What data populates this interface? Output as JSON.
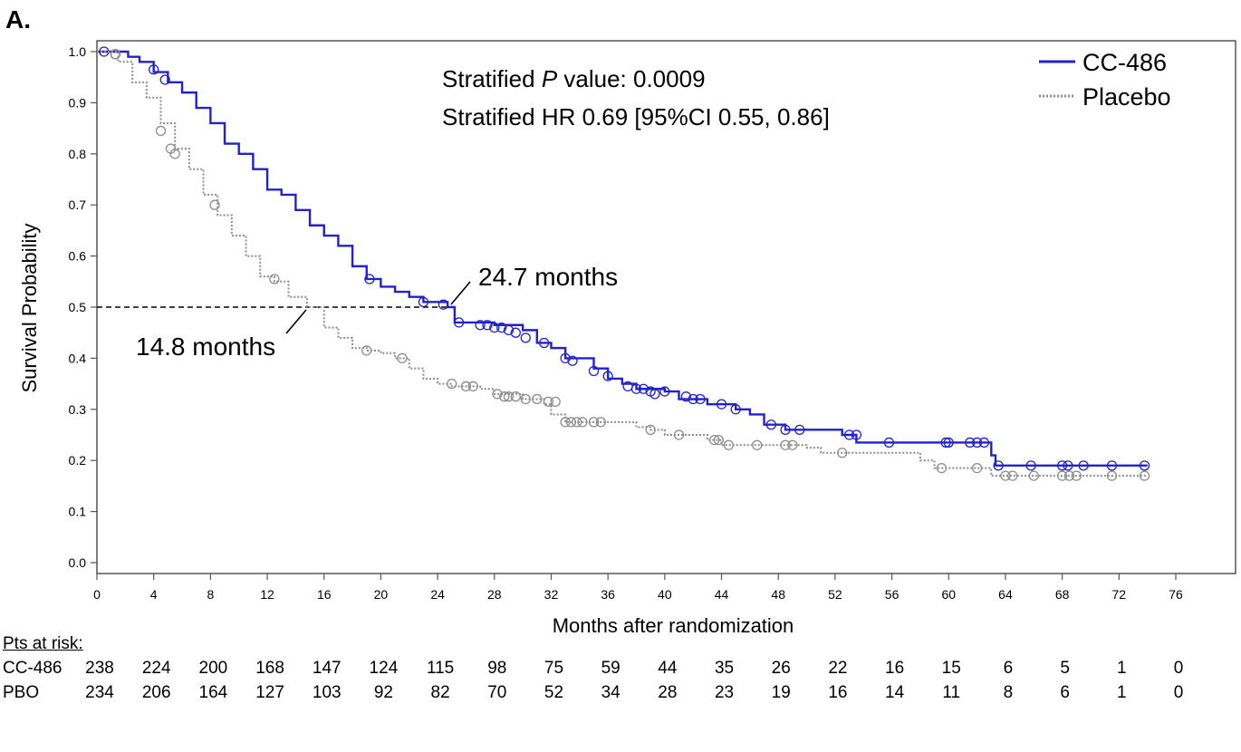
{
  "panel_label": "A.",
  "colors": {
    "cc486": "#2222cc",
    "placebo": "#8c8c8c",
    "axis": "#555555"
  },
  "chart_data": {
    "type": "line",
    "subtype": "kaplan-meier",
    "xlabel": "Months after randomization",
    "ylabel": "Survival Probability",
    "xlim": [
      0,
      76
    ],
    "ylim": [
      0,
      1.0
    ],
    "xticks": [
      0,
      4,
      8,
      12,
      16,
      20,
      24,
      28,
      32,
      36,
      40,
      44,
      48,
      52,
      56,
      60,
      64,
      68,
      72,
      76
    ],
    "xtick_labels": [
      "0",
      "4",
      "8",
      "12",
      "16",
      "20",
      "24",
      "28",
      "32",
      "36",
      "40",
      "44",
      "48",
      "52",
      "56",
      "60",
      "64",
      "68",
      "72",
      "76"
    ],
    "yticks": [
      0,
      0.1,
      0.2,
      0.3,
      0.4,
      0.5,
      0.6,
      0.7,
      0.8,
      0.9,
      1.0
    ],
    "ytick_labels": [
      "0.0",
      "0.1",
      "0.2",
      "0.3",
      "0.4",
      "0.5",
      "0.6",
      "0.7",
      "0.8",
      "0.9",
      "1.0"
    ],
    "legend_position": "top-right",
    "annotations": {
      "p_prefix": "Stratified ",
      "p_italic": "P",
      "p_suffix": " value: 0.0009",
      "hr": "Stratified HR 0.69 [95%CI 0.55, 0.86]",
      "median_cc486": "24.7 months",
      "median_placebo": "14.8 months"
    },
    "reference_line_y": 0.5,
    "series": [
      {
        "name": "CC-486",
        "style": "solid",
        "points": [
          [
            0,
            1.0
          ],
          [
            2.2,
            0.99
          ],
          [
            3,
            0.98
          ],
          [
            4,
            0.96
          ],
          [
            5,
            0.94
          ],
          [
            6,
            0.92
          ],
          [
            7,
            0.89
          ],
          [
            8,
            0.86
          ],
          [
            9,
            0.82
          ],
          [
            10,
            0.8
          ],
          [
            11,
            0.77
          ],
          [
            12,
            0.73
          ],
          [
            13,
            0.72
          ],
          [
            14,
            0.69
          ],
          [
            15,
            0.66
          ],
          [
            16,
            0.64
          ],
          [
            17,
            0.62
          ],
          [
            18,
            0.58
          ],
          [
            19,
            0.555
          ],
          [
            20,
            0.54
          ],
          [
            21,
            0.53
          ],
          [
            22,
            0.52
          ],
          [
            23,
            0.51
          ],
          [
            24.7,
            0.5
          ],
          [
            25.2,
            0.47
          ],
          [
            26.5,
            0.47
          ],
          [
            28,
            0.465
          ],
          [
            30,
            0.455
          ],
          [
            31,
            0.43
          ],
          [
            32,
            0.42
          ],
          [
            33,
            0.4
          ],
          [
            35,
            0.38
          ],
          [
            36,
            0.36
          ],
          [
            37,
            0.35
          ],
          [
            38,
            0.34
          ],
          [
            40,
            0.335
          ],
          [
            41,
            0.32
          ],
          [
            43,
            0.31
          ],
          [
            45,
            0.3
          ],
          [
            46,
            0.29
          ],
          [
            47,
            0.27
          ],
          [
            48.5,
            0.26
          ],
          [
            52.5,
            0.25
          ],
          [
            53.5,
            0.235
          ],
          [
            62.5,
            0.235
          ],
          [
            63,
            0.21
          ],
          [
            63.3,
            0.19
          ],
          [
            74,
            0.19
          ]
        ],
        "censors": [
          [
            0.5,
            1.0
          ],
          [
            1.3,
            0.995
          ],
          [
            4,
            0.965
          ],
          [
            4.8,
            0.945
          ],
          [
            19.2,
            0.555
          ],
          [
            23,
            0.51
          ],
          [
            24.4,
            0.505
          ],
          [
            25.5,
            0.47
          ],
          [
            27,
            0.465
          ],
          [
            27.5,
            0.465
          ],
          [
            28,
            0.46
          ],
          [
            28.5,
            0.46
          ],
          [
            29,
            0.455
          ],
          [
            29.5,
            0.45
          ],
          [
            30.2,
            0.44
          ],
          [
            31.5,
            0.43
          ],
          [
            33,
            0.4
          ],
          [
            33.5,
            0.395
          ],
          [
            35,
            0.375
          ],
          [
            36,
            0.365
          ],
          [
            37.4,
            0.345
          ],
          [
            38,
            0.34
          ],
          [
            38.5,
            0.34
          ],
          [
            39,
            0.335
          ],
          [
            39.3,
            0.33
          ],
          [
            40,
            0.335
          ],
          [
            41.5,
            0.325
          ],
          [
            42,
            0.32
          ],
          [
            42.5,
            0.32
          ],
          [
            44,
            0.31
          ],
          [
            45,
            0.3
          ],
          [
            47.5,
            0.27
          ],
          [
            48.5,
            0.26
          ],
          [
            49.5,
            0.26
          ],
          [
            53,
            0.25
          ],
          [
            53.5,
            0.25
          ],
          [
            55.8,
            0.235
          ],
          [
            59.8,
            0.235
          ],
          [
            60,
            0.235
          ],
          [
            61.5,
            0.235
          ],
          [
            62,
            0.235
          ],
          [
            62.5,
            0.235
          ],
          [
            63.5,
            0.19
          ],
          [
            65.8,
            0.19
          ],
          [
            68,
            0.19
          ],
          [
            68.4,
            0.19
          ],
          [
            69.5,
            0.19
          ],
          [
            71.5,
            0.19
          ],
          [
            73.8,
            0.19
          ]
        ]
      },
      {
        "name": "Placebo",
        "style": "dotted",
        "points": [
          [
            0,
            1.0
          ],
          [
            1.5,
            0.98
          ],
          [
            2.5,
            0.94
          ],
          [
            3.5,
            0.91
          ],
          [
            4.5,
            0.86
          ],
          [
            5.5,
            0.81
          ],
          [
            6.5,
            0.77
          ],
          [
            7.5,
            0.72
          ],
          [
            8.5,
            0.68
          ],
          [
            9.5,
            0.64
          ],
          [
            10.5,
            0.6
          ],
          [
            11.5,
            0.56
          ],
          [
            12.5,
            0.55
          ],
          [
            13.5,
            0.52
          ],
          [
            14.8,
            0.5
          ],
          [
            16,
            0.46
          ],
          [
            17,
            0.44
          ],
          [
            18,
            0.42
          ],
          [
            19,
            0.415
          ],
          [
            20,
            0.41
          ],
          [
            21,
            0.4
          ],
          [
            22,
            0.38
          ],
          [
            23,
            0.36
          ],
          [
            24,
            0.35
          ],
          [
            25,
            0.345
          ],
          [
            27,
            0.34
          ],
          [
            28,
            0.33
          ],
          [
            30,
            0.32
          ],
          [
            31.5,
            0.31
          ],
          [
            32,
            0.29
          ],
          [
            33,
            0.275
          ],
          [
            36,
            0.275
          ],
          [
            38,
            0.265
          ],
          [
            39,
            0.26
          ],
          [
            40,
            0.25
          ],
          [
            43,
            0.24
          ],
          [
            44,
            0.23
          ],
          [
            48,
            0.23
          ],
          [
            50,
            0.225
          ],
          [
            51,
            0.215
          ],
          [
            57,
            0.215
          ],
          [
            58,
            0.2
          ],
          [
            59,
            0.185
          ],
          [
            62,
            0.185
          ],
          [
            63,
            0.17
          ],
          [
            74,
            0.17
          ]
        ],
        "censors": [
          [
            1.3,
            0.995
          ],
          [
            4.5,
            0.845
          ],
          [
            5.2,
            0.81
          ],
          [
            5.5,
            0.8
          ],
          [
            8.3,
            0.7
          ],
          [
            12.5,
            0.555
          ],
          [
            19,
            0.415
          ],
          [
            21.5,
            0.4
          ],
          [
            25,
            0.35
          ],
          [
            26,
            0.345
          ],
          [
            26.5,
            0.345
          ],
          [
            28.2,
            0.33
          ],
          [
            28.7,
            0.325
          ],
          [
            29,
            0.325
          ],
          [
            29.5,
            0.325
          ],
          [
            30.2,
            0.32
          ],
          [
            31,
            0.32
          ],
          [
            31.8,
            0.315
          ],
          [
            32.3,
            0.315
          ],
          [
            33,
            0.275
          ],
          [
            33.4,
            0.275
          ],
          [
            33.8,
            0.275
          ],
          [
            34.2,
            0.275
          ],
          [
            35,
            0.275
          ],
          [
            35.5,
            0.275
          ],
          [
            39,
            0.26
          ],
          [
            41,
            0.25
          ],
          [
            43.5,
            0.24
          ],
          [
            43.8,
            0.24
          ],
          [
            44.5,
            0.23
          ],
          [
            46.5,
            0.23
          ],
          [
            48.5,
            0.23
          ],
          [
            49,
            0.23
          ],
          [
            52.5,
            0.215
          ],
          [
            59.5,
            0.185
          ],
          [
            62,
            0.185
          ],
          [
            64,
            0.17
          ],
          [
            64.5,
            0.17
          ],
          [
            66,
            0.17
          ],
          [
            68,
            0.17
          ],
          [
            68.5,
            0.17
          ],
          [
            69,
            0.17
          ],
          [
            71.5,
            0.17
          ],
          [
            73.8,
            0.17
          ]
        ]
      }
    ]
  },
  "risk_table": {
    "title": "Pts at risk:",
    "rows": [
      {
        "label": "CC-486",
        "values": [
          "238",
          "224",
          "200",
          "168",
          "147",
          "124",
          "115",
          "98",
          "75",
          "59",
          "44",
          "35",
          "26",
          "22",
          "16",
          "15",
          "6",
          "5",
          "1",
          "0"
        ]
      },
      {
        "label": "PBO",
        "values": [
          "234",
          "206",
          "164",
          "127",
          "103",
          "92",
          "82",
          "70",
          "52",
          "34",
          "28",
          "23",
          "19",
          "16",
          "14",
          "11",
          "8",
          "6",
          "1",
          "0"
        ]
      }
    ]
  }
}
